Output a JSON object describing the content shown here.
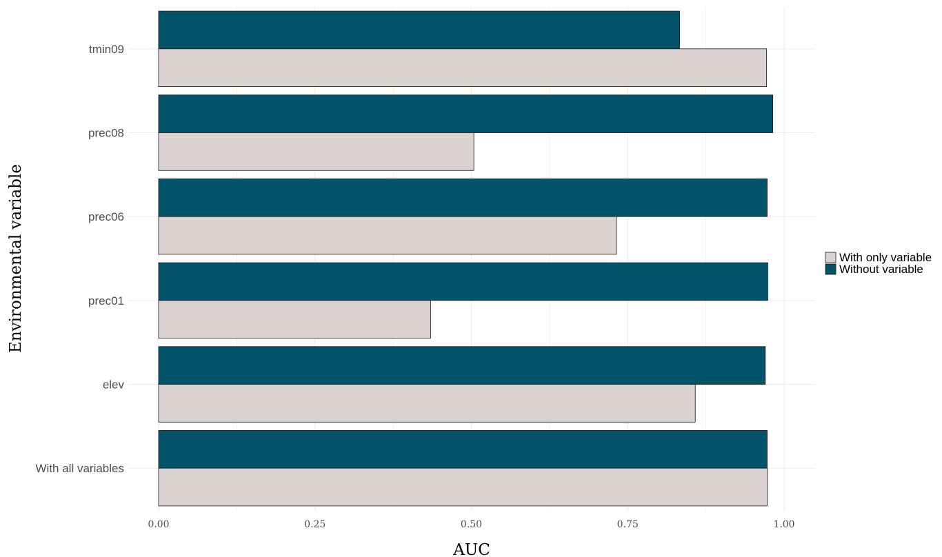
{
  "chart_data": {
    "type": "bar",
    "orientation": "horizontal",
    "title": "",
    "xlabel": "AUC",
    "ylabel": "Environmental variable",
    "xlim": [
      0,
      1.05
    ],
    "x_ticks": [
      "0.00",
      "0.25",
      "0.50",
      "0.75",
      "1.00"
    ],
    "x_tick_values": [
      0,
      0.25,
      0.5,
      0.75,
      1.0
    ],
    "grid": true,
    "legend_position": "right",
    "categories": [
      "With all variables",
      "elev",
      "prec01",
      "prec06",
      "prec08",
      "tmin09"
    ],
    "series": [
      {
        "name": "With only variable",
        "color": "#dbd3d1",
        "values": [
          0.973,
          0.858,
          0.435,
          0.732,
          0.504,
          0.972
        ]
      },
      {
        "name": "Without variable",
        "color": "#02536a",
        "values": [
          0.973,
          0.97,
          0.974,
          0.973,
          0.982,
          0.833
        ]
      }
    ]
  }
}
